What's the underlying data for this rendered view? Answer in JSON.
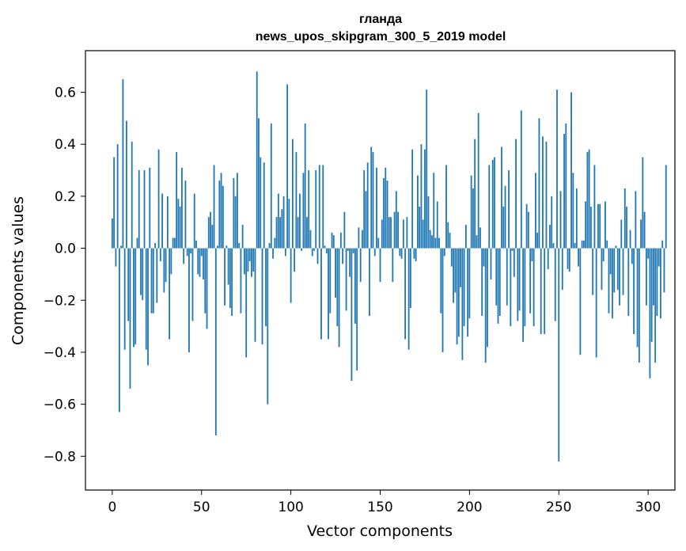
{
  "chart_data": {
    "type": "bar",
    "title_line1": "гланда",
    "title_line2": "news_upos_skipgram_300_5_2019 model",
    "xlabel": "Vector components",
    "ylabel": "Components values",
    "xlim": [
      -15,
      315
    ],
    "ylim": [
      -0.93,
      0.76
    ],
    "xticks": [
      0,
      50,
      100,
      150,
      200,
      250,
      300
    ],
    "xtick_labels": [
      "0",
      "50",
      "100",
      "150",
      "200",
      "250",
      "300"
    ],
    "yticks": [
      -0.8,
      -0.6,
      -0.4,
      -0.2,
      0.0,
      0.2,
      0.4,
      0.6
    ],
    "ytick_labels": [
      "−0.8",
      "−0.6",
      "−0.4",
      "−0.2",
      "0.0",
      "0.2",
      "0.4",
      "0.6"
    ],
    "bar_color": "#1f77b4",
    "values": [
      0.115,
      0.35,
      -0.07,
      0.4,
      -0.63,
      0.01,
      0.65,
      -0.39,
      0.49,
      -0.28,
      -0.54,
      0.41,
      -0.38,
      -0.37,
      0.04,
      0.3,
      -0.18,
      -0.2,
      0.3,
      -0.39,
      -0.45,
      0.31,
      -0.25,
      -0.25,
      0.02,
      -0.21,
      0.38,
      -0.05,
      0.21,
      -0.17,
      -0.13,
      0.2,
      -0.35,
      -0.1,
      0.04,
      0.04,
      0.37,
      0.19,
      0.16,
      0.31,
      -0.06,
      0.26,
      -0.03,
      -0.4,
      -0.02,
      -0.28,
      0.21,
      0.03,
      -0.1,
      -0.11,
      -0.03,
      -0.12,
      -0.25,
      -0.31,
      0.12,
      0.14,
      0.09,
      0.32,
      -0.72,
      0.01,
      0.26,
      0.29,
      0.24,
      -0.22,
      0.01,
      -0.14,
      -0.23,
      -0.26,
      0.27,
      0.2,
      0.29,
      0.02,
      -0.25,
      0.09,
      -0.1,
      -0.42,
      -0.09,
      -0.05,
      -0.11,
      -0.09,
      -0.36,
      0.68,
      0.5,
      0.35,
      -0.37,
      0.33,
      -0.3,
      -0.6,
      0.02,
      0.48,
      -0.04,
      0.04,
      0.12,
      0.21,
      0.12,
      0.15,
      0.2,
      -0.03,
      0.63,
      0.19,
      -0.21,
      0.42,
      -0.09,
      0.37,
      0.12,
      0.21,
      -0.01,
      0.29,
      0.48,
      0.12,
      0.3,
      0.07,
      -0.03,
      -0.01,
      0.3,
      -0.06,
      0.32,
      -0.35,
      0.32,
      0.01,
      -0.02,
      -0.35,
      -0.25,
      0.06,
      0.05,
      -0.19,
      -0.3,
      -0.38,
      0.06,
      -0.06,
      0.14,
      -0.24,
      -0.01,
      -0.11,
      -0.51,
      -0.02,
      -0.29,
      -0.47,
      0.08,
      -0.13,
      0.07,
      0.3,
      0.22,
      0.33,
      -0.26,
      0.39,
      0.37,
      -0.03,
      0.31,
      0.04,
      -0.13,
      0.11,
      0.27,
      0.31,
      0.26,
      0.12,
      0.12,
      -0.13,
      0.14,
      0.22,
      0.14,
      -0.03,
      -0.04,
      0.11,
      -0.35,
      0.12,
      -0.39,
      -0.23,
      0.38,
      -0.04,
      -0.05,
      0.28,
      0.16,
      0.4,
      0.11,
      0.38,
      0.61,
      0.2,
      0.07,
      0.05,
      0.29,
      0.04,
      0.18,
      0.04,
      -0.25,
      -0.4,
      -0.03,
      0.32,
      0.1,
      0.06,
      -0.07,
      -0.21,
      -0.17,
      -0.37,
      -0.34,
      -0.15,
      -0.43,
      -0.3,
      0.09,
      -0.34,
      -0.27,
      0.28,
      0.23,
      0.42,
      0.05,
      0.52,
      0.08,
      -0.26,
      -0.07,
      -0.44,
      -0.38,
      0.32,
      -0.12,
      0.34,
      0.35,
      -0.22,
      -0.29,
      -0.26,
      0.39,
      0.16,
      0.24,
      -0.22,
      0.3,
      -0.3,
      -0.01,
      -0.11,
      0.42,
      -0.28,
      -0.24,
      0.53,
      -0.36,
      -0.3,
      0.17,
      0.14,
      -0.25,
      -0.05,
      -0.3,
      0.29,
      0.06,
      0.5,
      -0.33,
      0.43,
      -0.33,
      0.41,
      -0.08,
      0.09,
      0.2,
      0.02,
      -0.28,
      0.61,
      -0.82,
      0.22,
      -0.16,
      0.44,
      0.48,
      -0.08,
      -0.09,
      0.6,
      0.29,
      0.02,
      0.23,
      -0.07,
      -0.41,
      0.03,
      0.03,
      0.18,
      0.37,
      0.38,
      0.16,
      -0.18,
      0.32,
      -0.42,
      0.17,
      0.17,
      -0.16,
      -0.05,
      0.18,
      0.03,
      -0.25,
      -0.1,
      -0.27,
      -0.17,
      0.01,
      -0.16,
      -0.22,
      0.11,
      -0.18,
      0.23,
      0.16,
      -0.26,
      0.07,
      -0.06,
      -0.33,
      0.22,
      -0.38,
      -0.44,
      0.11,
      0.35,
      0.14,
      -0.22,
      -0.04,
      -0.5,
      -0.36,
      -0.22,
      -0.44,
      -0.26,
      -0.07,
      -0.27,
      0.03,
      -0.17,
      0.32
    ]
  }
}
